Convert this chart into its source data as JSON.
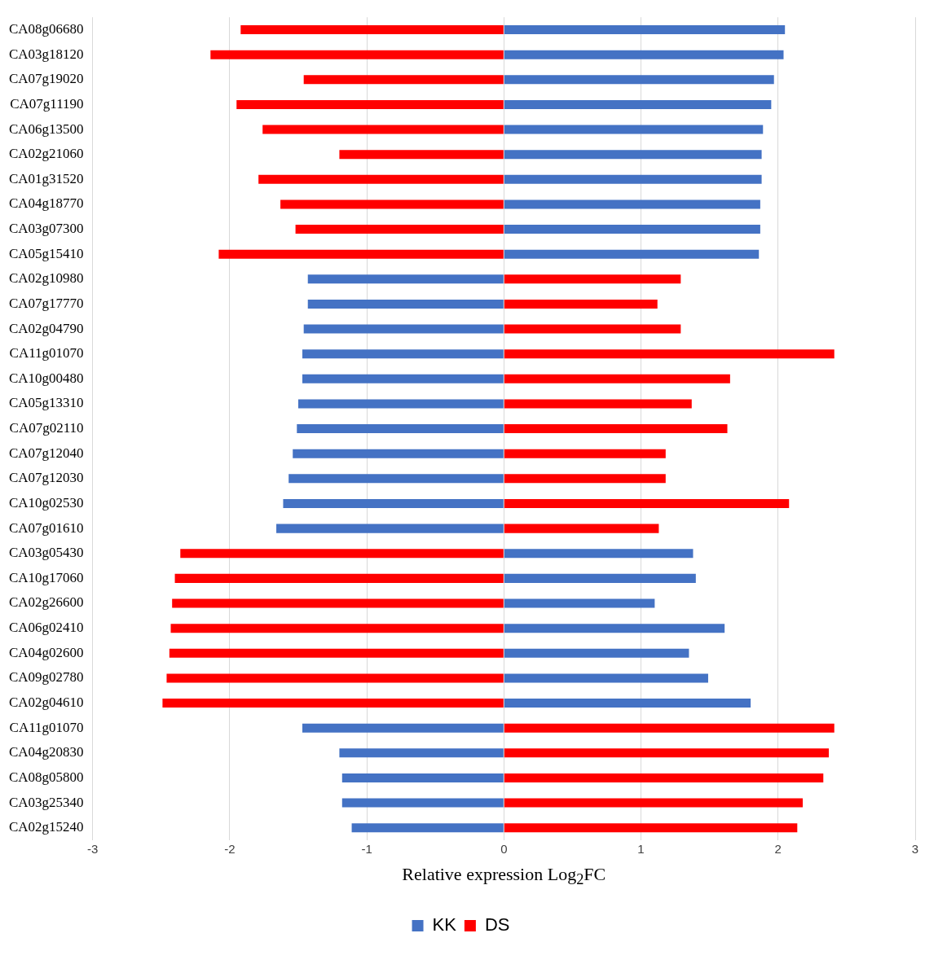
{
  "chart_data": {
    "type": "bar",
    "orientation": "horizontal",
    "xlabel": "Relative expression Log$_{2}$FC",
    "categories": [
      "CA08g06680",
      "CA03g18120",
      "CA07g19020",
      "CA07g11190",
      "CA06g13500",
      "CA02g21060",
      "CA01g31520",
      "CA04g18770",
      "CA03g07300",
      "CA05g15410",
      "CA02g10980",
      "CA07g17770",
      "CA02g04790",
      "CA11g01070",
      "CA10g00480",
      "CA05g13310",
      "CA07g02110",
      "CA07g12040",
      "CA07g12030",
      "CA10g02530",
      "CA07g01610",
      "CA03g05430",
      "CA10g17060",
      "CA02g26600",
      "CA06g02410",
      "CA04g02600",
      "CA09g02780",
      "CA02g04610",
      "CA11g01070",
      "CA04g20830",
      "CA08g05800",
      "CA03g25340",
      "CA02g15240"
    ],
    "series": [
      {
        "name": "KK",
        "color": "#4472c4",
        "values": [
          2.05,
          2.04,
          1.97,
          1.95,
          1.89,
          1.88,
          1.88,
          1.87,
          1.87,
          1.86,
          -1.43,
          -1.43,
          -1.46,
          -1.47,
          -1.47,
          -1.5,
          -1.51,
          -1.54,
          -1.57,
          -1.61,
          -1.66,
          1.38,
          1.4,
          1.1,
          1.61,
          1.35,
          1.49,
          1.8,
          -1.47,
          -1.2,
          -1.18,
          -1.18,
          -1.11
        ]
      },
      {
        "name": "DS",
        "color": "#ff0000",
        "values": [
          -1.92,
          -2.14,
          -1.46,
          -1.95,
          -1.76,
          -1.2,
          -1.79,
          -1.63,
          -1.52,
          -2.08,
          1.29,
          1.12,
          1.29,
          2.41,
          1.65,
          1.37,
          1.63,
          1.18,
          1.18,
          2.08,
          1.13,
          -2.36,
          -2.4,
          -2.42,
          -2.43,
          -2.44,
          -2.46,
          -2.49,
          2.41,
          2.37,
          2.33,
          2.18,
          2.14
        ]
      }
    ],
    "xlim": [
      -3,
      3
    ],
    "xticks": [
      -3,
      -2,
      -1,
      0,
      1,
      2,
      3
    ],
    "stacked": true,
    "grid": "x",
    "legend": "bottom"
  }
}
